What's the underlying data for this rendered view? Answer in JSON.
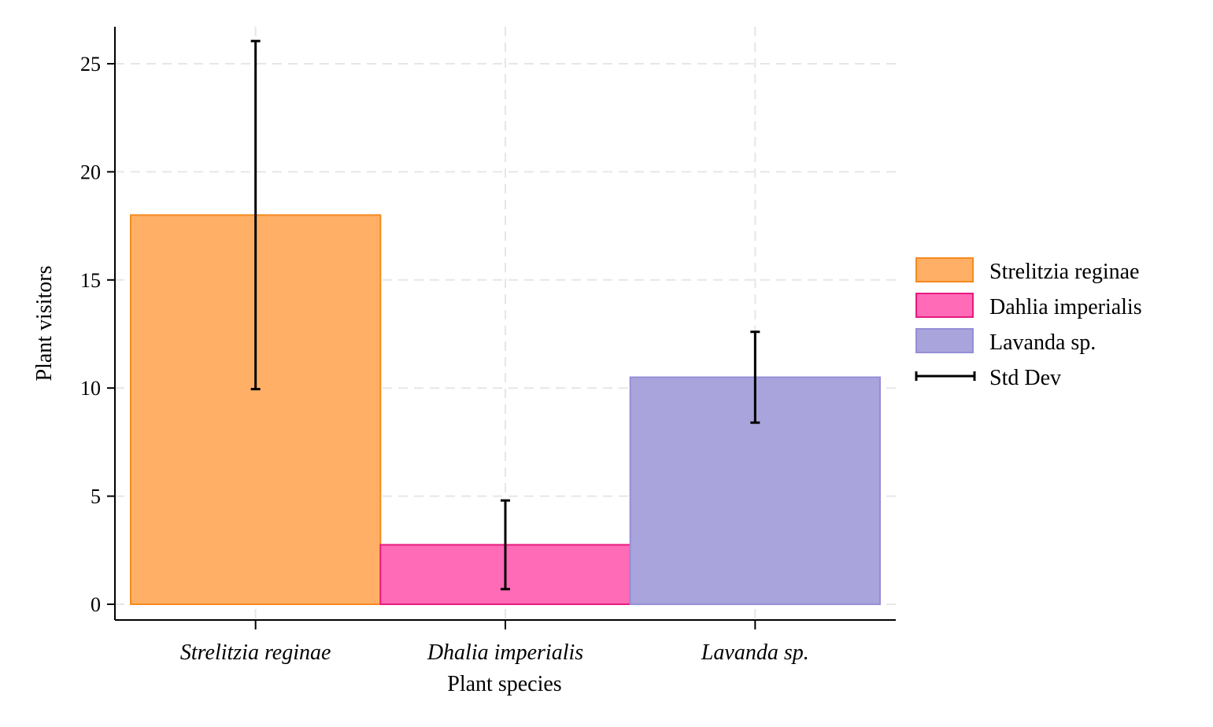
{
  "chart_data": {
    "type": "bar",
    "title": "",
    "xlabel": "Plant species",
    "ylabel": "Plant visitors",
    "ylim": [
      -0.7,
      26.8
    ],
    "yticks": [
      0,
      5,
      10,
      15,
      20,
      25
    ],
    "ytick_labels": [
      "0",
      "5",
      "10",
      "15",
      "20",
      "25"
    ],
    "categories": [
      "Strelitzia reginae",
      "Dhalia imperialis",
      "Lavanda sp."
    ],
    "values": [
      18,
      2.75,
      10.5
    ],
    "std_dev": [
      8.05,
      2.05,
      2.1
    ],
    "colors": [
      "#FFB066",
      "#FF6BB7",
      "#A9A4DC"
    ],
    "edge_colors": [
      "#F5891F",
      "#E8197E",
      "#958FD6"
    ],
    "grid": true,
    "legend_position": "right",
    "legend": {
      "entries": [
        "Strelitzia reginae",
        "Dahlia imperialis",
        "Lavanda sp."
      ],
      "errorbar_label": "Std Dev"
    }
  }
}
